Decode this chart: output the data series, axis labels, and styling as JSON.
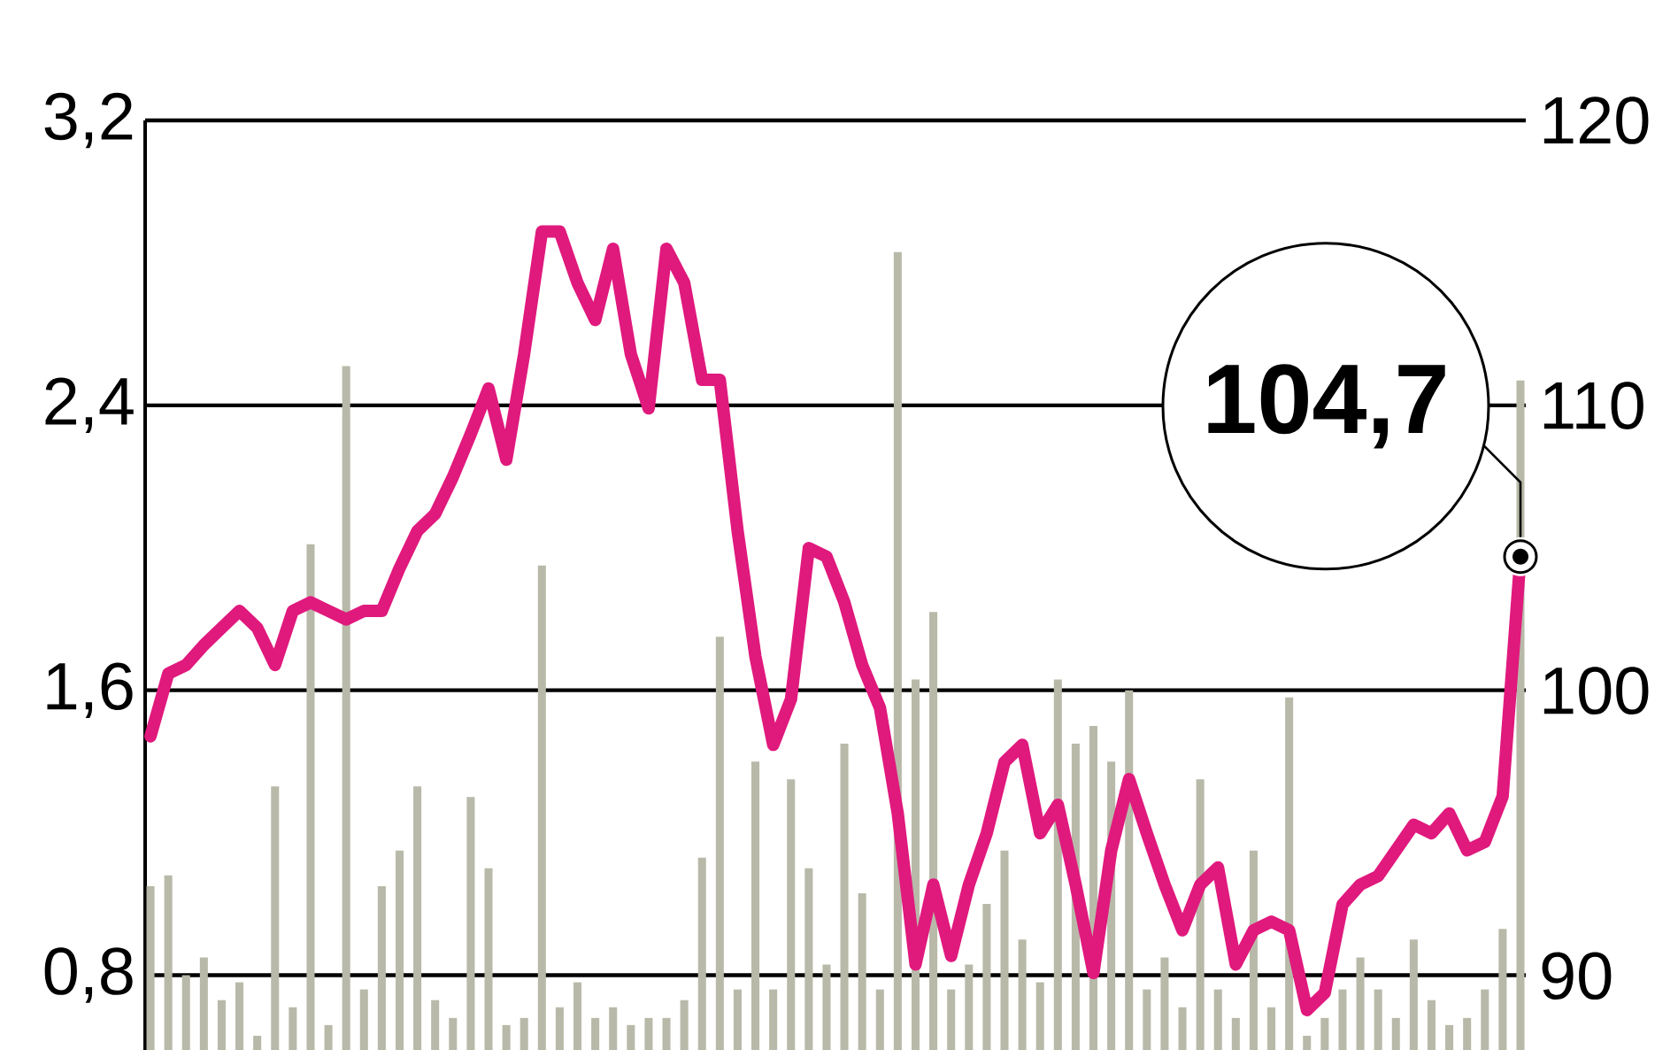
{
  "chart_data": {
    "type": "bar",
    "categories": [
      null,
      null,
      null,
      null,
      null,
      null,
      null,
      null,
      null,
      null,
      null,
      null,
      null,
      null,
      null,
      null,
      null,
      null,
      null,
      null,
      null,
      null,
      null,
      null,
      null,
      null,
      null,
      null,
      null,
      null,
      null,
      null,
      null,
      null,
      null,
      null,
      null,
      null,
      null,
      null,
      null,
      null,
      null,
      null,
      null,
      null,
      null,
      null,
      null,
      null,
      null,
      null,
      null,
      null,
      null,
      null,
      null,
      null,
      null,
      null,
      null,
      null,
      null,
      null,
      null,
      null,
      null,
      null,
      null,
      null,
      null,
      null,
      null,
      null,
      null,
      null,
      null,
      null
    ],
    "series": [
      {
        "axis": "y",
        "color": "#b9b9a9",
        "values": [
          1.05,
          1.08,
          0.8,
          0.85,
          0.73,
          0.78,
          0.63,
          1.33,
          0.71,
          2.01,
          0.66,
          2.51,
          0.76,
          1.05,
          1.15,
          1.33,
          0.73,
          0.68,
          1.3,
          1.1,
          0.66,
          0.68,
          1.95,
          0.71,
          0.78,
          0.68,
          0.71,
          0.66,
          0.68,
          0.68,
          0.73,
          1.13,
          1.75,
          0.76,
          1.4,
          0.76,
          1.35,
          1.1,
          0.83,
          1.45,
          1.03,
          0.76,
          2.83,
          1.63,
          1.82,
          0.76,
          0.83,
          1.0,
          1.15,
          0.9,
          0.78,
          1.63,
          1.45,
          1.5,
          1.4,
          1.6,
          0.76,
          0.85,
          0.71,
          1.35,
          0.76,
          0.68,
          1.15,
          0.71,
          1.58,
          0.63,
          0.68,
          0.76,
          0.85,
          0.76,
          0.68,
          0.9,
          0.73,
          0.66,
          0.68,
          0.76,
          0.93,
          2.47
        ]
      },
      {
        "type": "line",
        "axis": "y2",
        "color": "#e0197d",
        "values": [
          98.4,
          100.6,
          100.9,
          101.6,
          102.2,
          102.8,
          102.2,
          100.9,
          102.8,
          103.1,
          102.8,
          102.5,
          102.8,
          102.8,
          104.3,
          105.6,
          106.2,
          107.5,
          109.0,
          110.6,
          108.1,
          111.8,
          116.1,
          116.1,
          114.3,
          113.0,
          115.5,
          111.8,
          109.9,
          115.5,
          114.3,
          110.9,
          110.9,
          105.6,
          101.2,
          98.1,
          99.7,
          105.0,
          104.7,
          103.1,
          100.9,
          99.4,
          95.7,
          90.4,
          93.2,
          90.7,
          93.2,
          95.0,
          97.5,
          98.1,
          95.0,
          96.0,
          93.2,
          90.1,
          94.4,
          96.9,
          95.0,
          93.2,
          91.6,
          93.2,
          93.8,
          90.4,
          91.6,
          91.9,
          91.6,
          88.8,
          89.4,
          92.5,
          93.2,
          93.5,
          94.4,
          95.3,
          95.0,
          95.7,
          94.4,
          94.7,
          96.3,
          104.7
        ]
      }
    ],
    "ylim": [
      0.59,
      3.2
    ],
    "yticks": [
      {
        "value": 0.8,
        "label": "0,8"
      },
      {
        "value": 1.6,
        "label": "1,6"
      },
      {
        "value": 2.4,
        "label": "2,4"
      },
      {
        "value": 3.2,
        "label": "3,2"
      }
    ],
    "y2lim": [
      87.4,
      120
    ],
    "y2ticks": [
      90,
      100,
      110,
      120
    ],
    "grid": "y",
    "annotations": [
      "104,7"
    ]
  }
}
